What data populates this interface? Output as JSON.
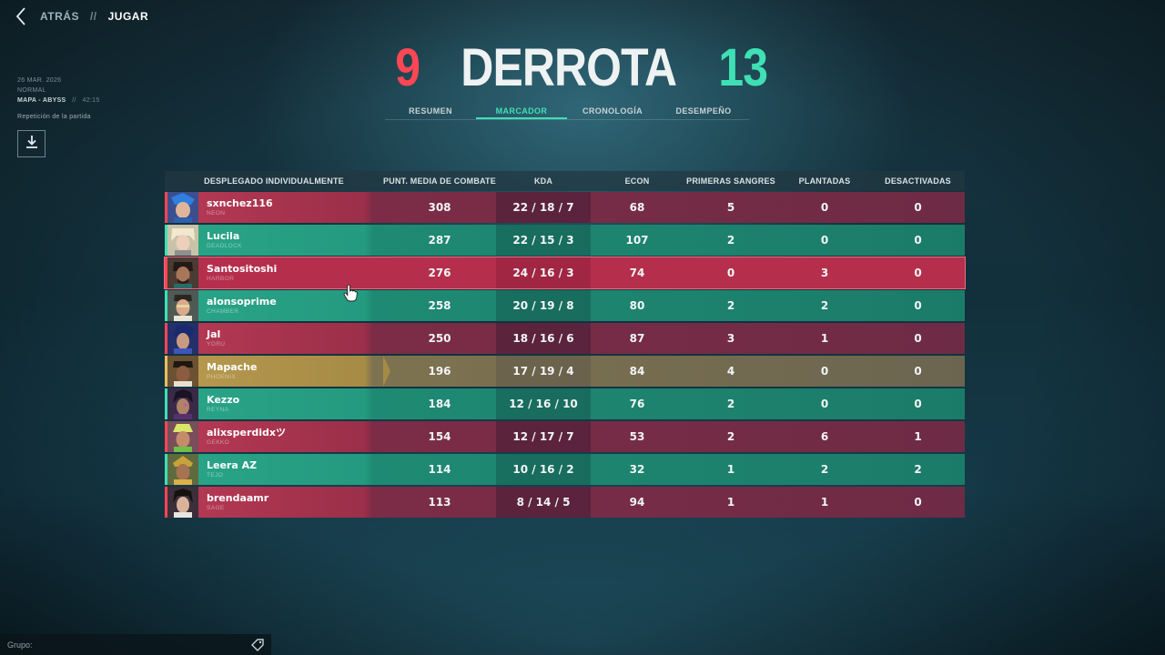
{
  "nav": {
    "back": "ATRÁS",
    "separator": "//",
    "current": "JUGAR"
  },
  "match": {
    "date": "26 MAR. 2026",
    "mode": "NORMAL",
    "map": "MAPA - ABYSS",
    "separator": "//",
    "duration": "42:15",
    "replay_label": "Repetición de la partida"
  },
  "header": {
    "score_left": "9",
    "result": "DERROTA",
    "score_right": "13"
  },
  "tabs": [
    {
      "label": "RESUMEN",
      "active": false
    },
    {
      "label": "MARCADOR",
      "active": true
    },
    {
      "label": "CRONOLOGÍA",
      "active": false
    },
    {
      "label": "DESEMPEÑO",
      "active": false
    }
  ],
  "scoreboard": {
    "columns": {
      "player": "DESPLEGADO INDIVIDUALMENTE",
      "acs": "PUNT. MEDIA DE COMBATE",
      "kda": "KDA",
      "econ": "ECON",
      "first_bloods": "PRIMERAS SANGRES",
      "plants": "PLANTADAS",
      "defuses": "DESACTIVADAS"
    },
    "rows": [
      {
        "name": "sxnchez116",
        "agent": "NEON",
        "acs": "308",
        "kda": "22 / 18 / 7",
        "econ": "68",
        "first_bloods": "5",
        "plants": "0",
        "defuses": "0"
      },
      {
        "name": "Lucila",
        "agent": "DEADLOCK",
        "acs": "287",
        "kda": "22 / 15 / 3",
        "econ": "107",
        "first_bloods": "2",
        "plants": "0",
        "defuses": "0"
      },
      {
        "name": "Santositoshi",
        "agent": "HARBOR",
        "acs": "276",
        "kda": "24 / 16 / 3",
        "econ": "74",
        "first_bloods": "0",
        "plants": "3",
        "defuses": "0"
      },
      {
        "name": "alonsoprime",
        "agent": "CHAMBER",
        "acs": "258",
        "kda": "20 / 19 / 8",
        "econ": "80",
        "first_bloods": "2",
        "plants": "2",
        "defuses": "0"
      },
      {
        "name": "Jal",
        "agent": "YORU",
        "acs": "250",
        "kda": "18 / 16 / 6",
        "econ": "87",
        "first_bloods": "3",
        "plants": "1",
        "defuses": "0"
      },
      {
        "name": "Mapache",
        "agent": "PHOENIX",
        "acs": "196",
        "kda": "17 / 19 / 4",
        "econ": "84",
        "first_bloods": "4",
        "plants": "0",
        "defuses": "0"
      },
      {
        "name": "Kezzo",
        "agent": "REYNA",
        "acs": "184",
        "kda": "12 / 16 / 10",
        "econ": "76",
        "first_bloods": "2",
        "plants": "0",
        "defuses": "0"
      },
      {
        "name": "alixsperdidxツ",
        "agent": "GEKKO",
        "acs": "154",
        "kda": "12 / 17 / 7",
        "econ": "53",
        "first_bloods": "2",
        "plants": "6",
        "defuses": "1"
      },
      {
        "name": "Leera AZ",
        "agent": "TEJO",
        "acs": "114",
        "kda": "10 / 16 / 2",
        "econ": "32",
        "first_bloods": "1",
        "plants": "2",
        "defuses": "2"
      },
      {
        "name": "brendaamr",
        "agent": "SAGE",
        "acs": "113",
        "kda": "8 / 14 / 5",
        "econ": "94",
        "first_bloods": "1",
        "plants": "1",
        "defuses": "0"
      }
    ]
  },
  "chat": {
    "label": "Grupo:"
  },
  "colors": {
    "defeat_red": "#ff4655",
    "victory_teal": "#3ee0b4",
    "accent_tab": "#3ee0b4",
    "self_gold": "#b89a4f"
  },
  "icons": {
    "back": "chevron-left-icon",
    "download": "download-icon",
    "chat": "tag-icon"
  }
}
